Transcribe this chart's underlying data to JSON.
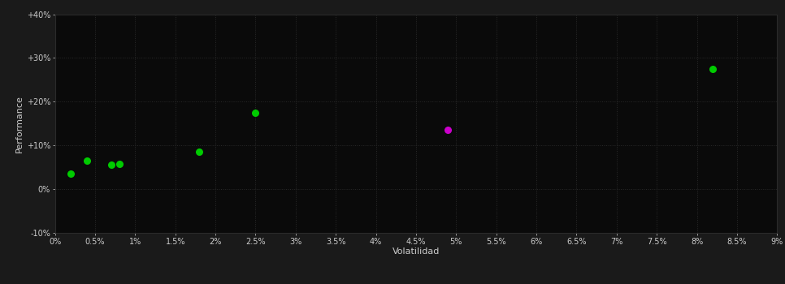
{
  "background_color": "#1a1a1a",
  "plot_bg_color": "#0a0a0a",
  "grid_color": "#2a2a2a",
  "text_color": "#cccccc",
  "xlabel": "Volatilidad",
  "ylabel": "Performance",
  "xlim": [
    0.0,
    0.09
  ],
  "ylim": [
    -0.1,
    0.4
  ],
  "xticks": [
    0.0,
    0.005,
    0.01,
    0.015,
    0.02,
    0.025,
    0.03,
    0.035,
    0.04,
    0.045,
    0.05,
    0.055,
    0.06,
    0.065,
    0.07,
    0.075,
    0.08,
    0.085,
    0.09
  ],
  "yticks": [
    -0.1,
    0.0,
    0.1,
    0.2,
    0.3,
    0.4
  ],
  "ytick_labels": [
    "-10%",
    "0%",
    "+10%",
    "+20%",
    "+30%",
    "+40%"
  ],
  "xtick_labels": [
    "0%",
    "0.5%",
    "1%",
    "1.5%",
    "2%",
    "2.5%",
    "3%",
    "3.5%",
    "4%",
    "4.5%",
    "5%",
    "5.5%",
    "6%",
    "6.5%",
    "7%",
    "7.5%",
    "8%",
    "8.5%",
    "9%"
  ],
  "green_points": [
    [
      0.002,
      0.035
    ],
    [
      0.004,
      0.065
    ],
    [
      0.007,
      0.055
    ],
    [
      0.008,
      0.057
    ],
    [
      0.018,
      0.085
    ],
    [
      0.025,
      0.175
    ],
    [
      0.082,
      0.275
    ]
  ],
  "magenta_points": [
    [
      0.049,
      0.135
    ]
  ],
  "point_size": 30,
  "green_color": "#00cc00",
  "magenta_color": "#cc00cc"
}
